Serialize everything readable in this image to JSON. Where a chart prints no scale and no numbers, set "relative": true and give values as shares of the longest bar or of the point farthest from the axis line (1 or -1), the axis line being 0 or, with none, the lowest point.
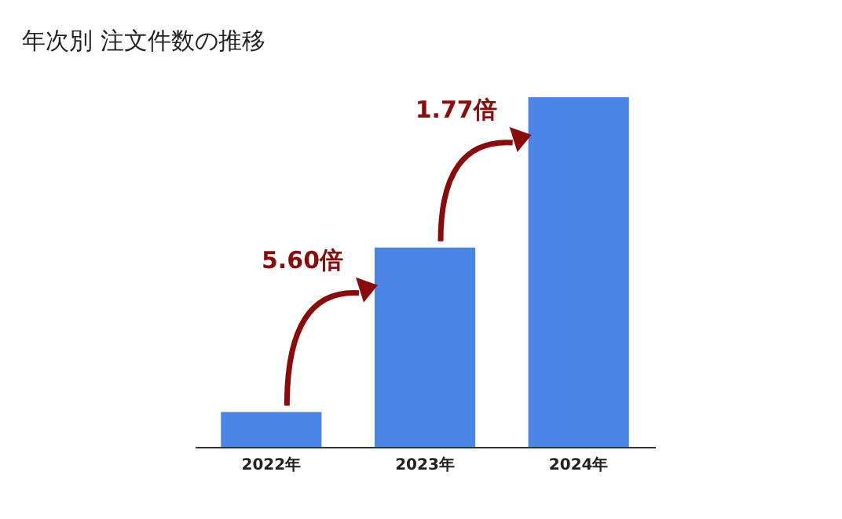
{
  "chart_data": {
    "type": "bar",
    "title": "年次別 注文件数の推移",
    "relative": true,
    "categories": [
      "2022年",
      "2023年",
      "2024年"
    ],
    "values": [
      0.1,
      0.57,
      1
    ],
    "color": "#4a86e8",
    "annotations": [
      "5.60倍",
      "1.77倍"
    ]
  }
}
